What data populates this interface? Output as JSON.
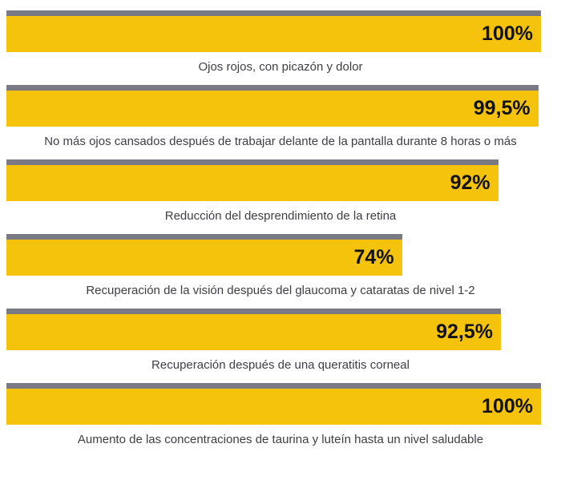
{
  "chart_data": {
    "type": "bar",
    "orientation": "horizontal",
    "title": "",
    "xlabel": "",
    "ylabel": "",
    "unit": "%",
    "xlim": [
      0,
      100
    ],
    "grid": false,
    "legend": "none",
    "value_label_position": "inside-right",
    "category_label_position": "below-bar-centered",
    "items": [
      {
        "label": "Ojos rojos, con picazón y dolor",
        "value": 100,
        "value_label": "100%"
      },
      {
        "label": "No más ojos cansados después de trabajar delante de la pantalla durante 8 horas o más",
        "value": 99.5,
        "value_label": "99,5%"
      },
      {
        "label": "Reducción del desprendimiento de la retina",
        "value": 92,
        "value_label": "92%"
      },
      {
        "label": "Recuperación de la visión después del glaucoma y cataratas de nivel 1-2",
        "value": 74,
        "value_label": "74%"
      },
      {
        "label": "Recuperación después de una queratitis corneal",
        "value": 92.5,
        "value_label": "92,5%"
      },
      {
        "label": "Aumento de las concentraciones de taurina y luteín hasta un nivel saludable",
        "value": 100,
        "value_label": "100%"
      }
    ],
    "colors": {
      "bar_fill": "#f5c30b",
      "bar_cap": "#7a7a84",
      "value_text": "#121212",
      "caption_text": "#3e3e46",
      "background": "#ffffff"
    }
  }
}
